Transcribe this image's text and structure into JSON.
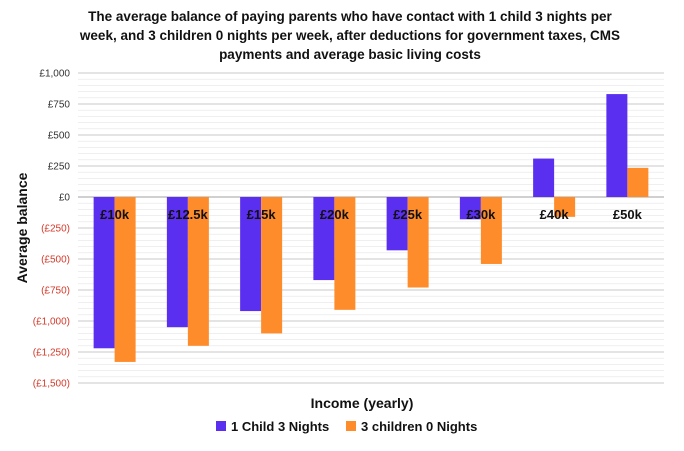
{
  "chart_data": {
    "type": "bar",
    "title_lines": [
      "The average balance of paying parents who have contact with 1 child 3 nights per",
      "week, and 3 children 0 nights per week, after deductions for government taxes, CMS",
      "payments and average basic living costs"
    ],
    "xlabel": "Income (yearly)",
    "ylabel": "Average balance",
    "categories": [
      "£10k",
      "£12.5k",
      "£15k",
      "£20k",
      "£25k",
      "£30k",
      "£40k",
      "£50k"
    ],
    "series": [
      {
        "name": "1 Child 3 Nights",
        "color": "#5b2ff0",
        "values": [
          -1220,
          -1050,
          -920,
          -670,
          -430,
          -180,
          310,
          830
        ]
      },
      {
        "name": "3 children 0 Nights",
        "color": "#ff8c2a",
        "values": [
          -1330,
          -1200,
          -1100,
          -910,
          -730,
          -540,
          -160,
          235
        ]
      }
    ],
    "ylim": [
      -1500,
      1000
    ],
    "yticks": [
      {
        "value": 1000,
        "label": "£1,000",
        "color": "#333333"
      },
      {
        "value": 750,
        "label": "£750",
        "color": "#333333"
      },
      {
        "value": 500,
        "label": "£500",
        "color": "#333333"
      },
      {
        "value": 250,
        "label": "£250",
        "color": "#333333"
      },
      {
        "value": 0,
        "label": "£0",
        "color": "#333333"
      },
      {
        "value": -250,
        "label": "(£250)",
        "color": "#d43a2a"
      },
      {
        "value": -500,
        "label": "(£500)",
        "color": "#d43a2a"
      },
      {
        "value": -750,
        "label": "(£750)",
        "color": "#d43a2a"
      },
      {
        "value": -1000,
        "label": "(£1,000)",
        "color": "#d43a2a"
      },
      {
        "value": -1250,
        "label": "(£1,250)",
        "color": "#d43a2a"
      },
      {
        "value": -1500,
        "label": "(£1,500)",
        "color": "#d43a2a"
      }
    ],
    "minor_step": 50,
    "grid": true,
    "legend_position": "bottom"
  }
}
